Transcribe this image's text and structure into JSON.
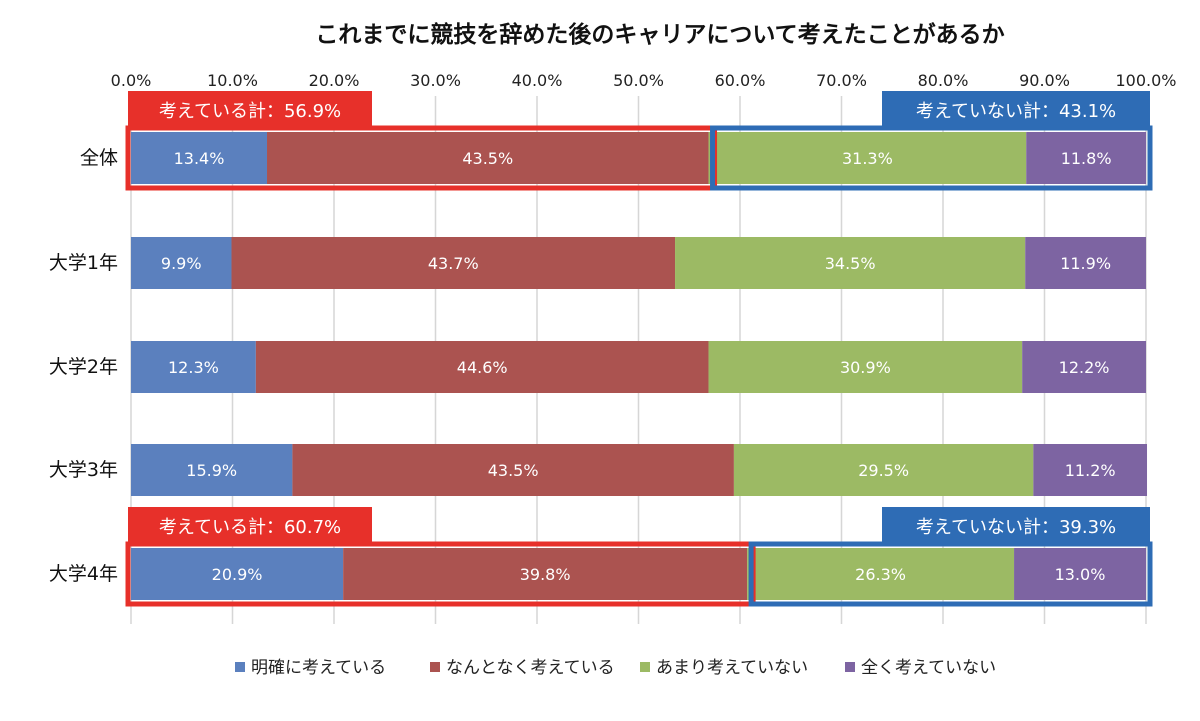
{
  "chart_data": {
    "type": "bar",
    "orientation": "horizontal",
    "stacked": true,
    "title": "これまでに競技を辞めた後のキャリアについて考えたことがあるか",
    "categories": [
      "全体",
      "大学1年",
      "大学2年",
      "大学3年",
      "大学4年"
    ],
    "series": [
      {
        "name": "明確に考えている",
        "color": "#5b80be",
        "values": [
          13.4,
          9.9,
          12.3,
          15.9,
          20.9
        ]
      },
      {
        "name": "なんとなく考えている",
        "color": "#ab5350",
        "values": [
          43.5,
          43.7,
          44.6,
          43.5,
          39.8
        ]
      },
      {
        "name": "あまり考えていない",
        "color": "#9cba64",
        "values": [
          31.3,
          34.5,
          30.9,
          29.5,
          26.3
        ]
      },
      {
        "name": "全く考えていない",
        "color": "#7d64a2",
        "values": [
          11.8,
          11.9,
          12.2,
          11.2,
          13.0
        ]
      }
    ],
    "xlim": [
      0,
      100
    ],
    "xticks": [
      "0.0%",
      "10.0%",
      "20.0%",
      "30.0%",
      "40.0%",
      "50.0%",
      "60.0%",
      "70.0%",
      "80.0%",
      "90.0%",
      "100.0%"
    ],
    "axis_position": "top",
    "grid": true,
    "legend": "bottom",
    "annotations": [
      {
        "category": "全体",
        "group": "think",
        "text": "考えている計：56.9%",
        "color": "#e7302a"
      },
      {
        "category": "全体",
        "group": "notthink",
        "text": "考えていない計：43.1%",
        "color": "#2e6cb5"
      },
      {
        "category": "大学4年",
        "group": "think",
        "text": "考えている計：60.7%",
        "color": "#e7302a"
      },
      {
        "category": "大学4年",
        "group": "notthink",
        "text": "考えていない計：39.3%",
        "color": "#2e6cb5"
      }
    ]
  }
}
